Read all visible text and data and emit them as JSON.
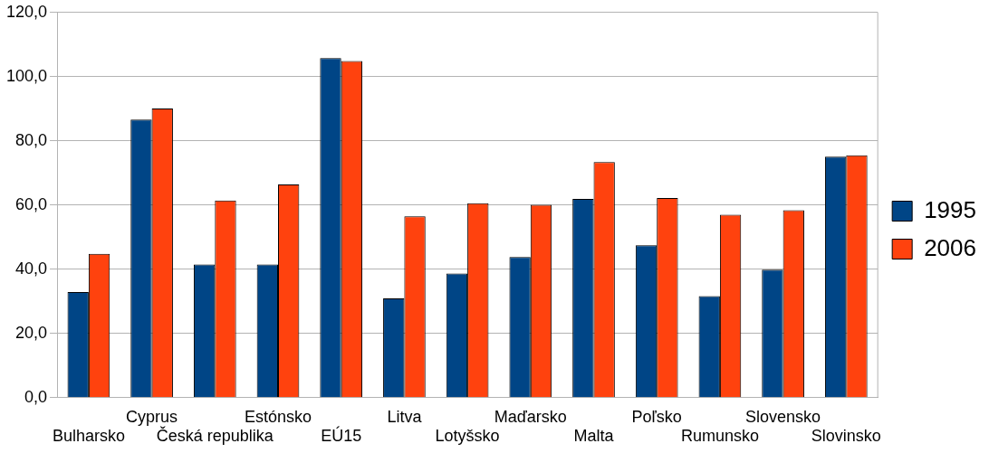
{
  "chart_data": {
    "type": "bar",
    "categories": [
      "Bulharsko",
      "Cyprus",
      "Česká republika",
      "Estónsko",
      "EÚ15",
      "Litva",
      "Lotyšsko",
      "Maďarsko",
      "Malta",
      "Poľsko",
      "Rumunsko",
      "Slovensko",
      "Slovinsko"
    ],
    "series": [
      {
        "name": "1995",
        "color": "#004586",
        "values": [
          32.9,
          86.6,
          41.5,
          41.5,
          105.8,
          30.9,
          38.7,
          43.8,
          61.9,
          47.5,
          31.6,
          39.9,
          75.1
        ]
      },
      {
        "name": "2006",
        "color": "#ff420e",
        "values": [
          44.8,
          90.1,
          61.4,
          66.4,
          104.9,
          56.5,
          60.6,
          60.1,
          73.4,
          62.2,
          57.0,
          58.4,
          75.5
        ]
      }
    ],
    "ylim": [
      0,
      120
    ],
    "yticks": [
      {
        "value": 0,
        "label": "0,0"
      },
      {
        "value": 20,
        "label": "20,0"
      },
      {
        "value": 40,
        "label": "40,0"
      },
      {
        "value": 60,
        "label": "60,0"
      },
      {
        "value": 80,
        "label": "80,0"
      },
      {
        "value": 100,
        "label": "100,0"
      },
      {
        "value": 120,
        "label": "120,0"
      }
    ],
    "grid": "y",
    "legend": "right"
  }
}
